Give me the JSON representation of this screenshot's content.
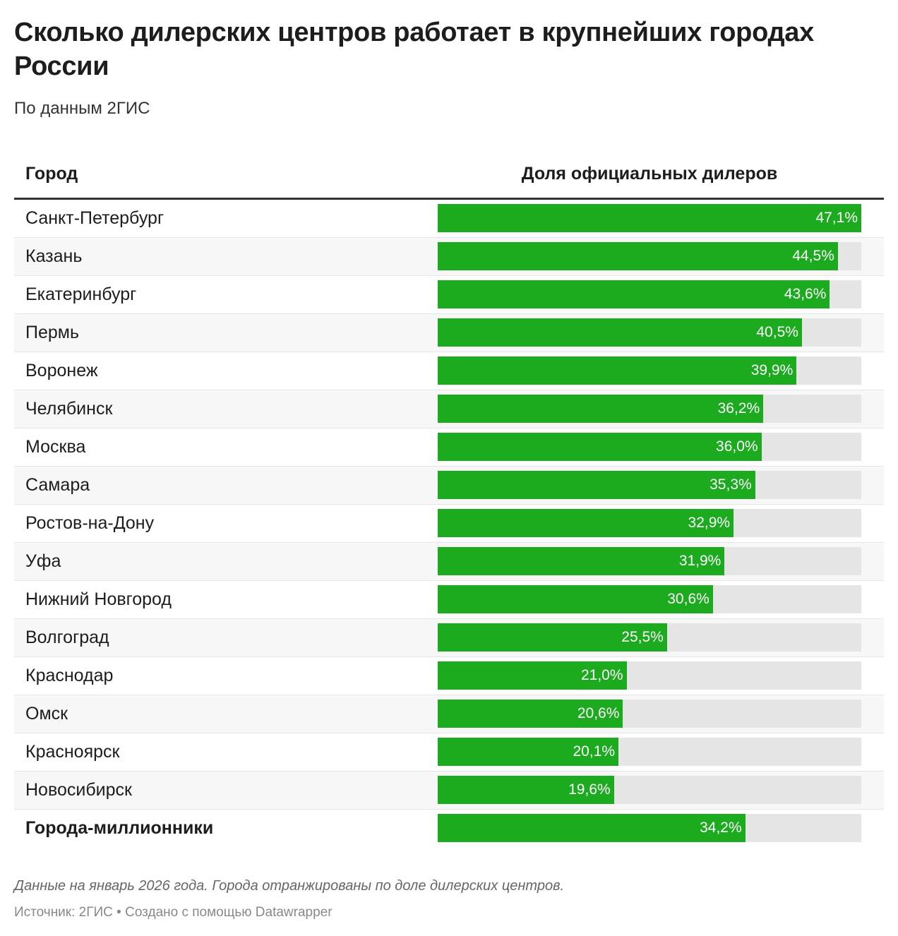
{
  "title": "Сколько дилерских центров работает в крупнейших городах России",
  "subtitle": "По данным 2ГИС",
  "note": "Данные на январь 2026 года. Города отранжированы по доле дилерских центров.",
  "source": "Источник: 2ГИС • Создано с помощью Datawrapper",
  "colors": {
    "bar": "#1caa1f",
    "track": "#e5e5e5"
  },
  "chart_data": {
    "type": "bar",
    "columns": [
      "Город",
      "Доля официальных дилеров"
    ],
    "xlim": [
      0,
      47.1
    ],
    "rows": [
      {
        "city": "Санкт-Петербург",
        "value": 47.1,
        "label": "47,1%"
      },
      {
        "city": "Казань",
        "value": 44.5,
        "label": "44,5%"
      },
      {
        "city": "Екатеринбург",
        "value": 43.6,
        "label": "43,6%"
      },
      {
        "city": "Пермь",
        "value": 40.5,
        "label": "40,5%"
      },
      {
        "city": "Воронеж",
        "value": 39.9,
        "label": "39,9%"
      },
      {
        "city": "Челябинск",
        "value": 36.2,
        "label": "36,2%"
      },
      {
        "city": "Москва",
        "value": 36.0,
        "label": "36,0%"
      },
      {
        "city": "Самара",
        "value": 35.3,
        "label": "35,3%"
      },
      {
        "city": "Ростов-на-Дону",
        "value": 32.9,
        "label": "32,9%"
      },
      {
        "city": "Уфа",
        "value": 31.9,
        "label": "31,9%"
      },
      {
        "city": "Нижний Новгород",
        "value": 30.6,
        "label": "30,6%"
      },
      {
        "city": "Волгоград",
        "value": 25.5,
        "label": "25,5%"
      },
      {
        "city": "Краснодар",
        "value": 21.0,
        "label": "21,0%"
      },
      {
        "city": "Омск",
        "value": 20.6,
        "label": "20,6%"
      },
      {
        "city": "Красноярск",
        "value": 20.1,
        "label": "20,1%"
      },
      {
        "city": "Новосибирск",
        "value": 19.6,
        "label": "19,6%"
      },
      {
        "city": "Города-миллионники",
        "value": 34.2,
        "label": "34,2%",
        "total": true
      }
    ]
  }
}
